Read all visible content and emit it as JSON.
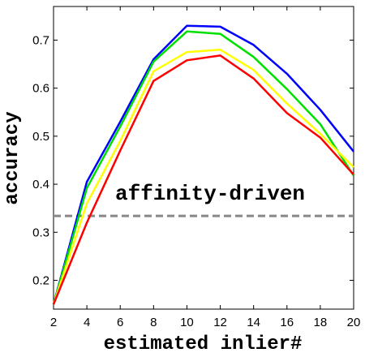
{
  "chart_data": {
    "type": "line",
    "title": "",
    "xlabel": "estimated inlier#",
    "ylabel": "accuracy",
    "xlim": [
      2,
      20
    ],
    "ylim": [
      0.14,
      0.77
    ],
    "xticks": [
      2,
      4,
      6,
      8,
      10,
      12,
      14,
      16,
      18,
      20
    ],
    "yticks": [
      0.2,
      0.3,
      0.4,
      0.5,
      0.6,
      0.7
    ],
    "x": [
      2,
      4,
      6,
      8,
      10,
      12,
      14,
      16,
      18,
      20
    ],
    "grid": false,
    "legend": "none",
    "series": [
      {
        "color": "#0000ff",
        "values": [
          0.15,
          0.405,
          0.53,
          0.66,
          0.73,
          0.728,
          0.69,
          0.63,
          0.555,
          0.468
        ]
      },
      {
        "color": "#00e000",
        "values": [
          0.15,
          0.392,
          0.52,
          0.655,
          0.718,
          0.713,
          0.665,
          0.598,
          0.525,
          0.418
        ]
      },
      {
        "color": "#ffff00",
        "values": [
          0.15,
          0.36,
          0.49,
          0.635,
          0.675,
          0.68,
          0.638,
          0.568,
          0.505,
          0.435
        ]
      },
      {
        "color": "#ff0000",
        "values": [
          0.15,
          0.32,
          0.47,
          0.615,
          0.658,
          0.668,
          0.62,
          0.548,
          0.497,
          0.42
        ]
      }
    ],
    "reference_line": {
      "value": 0.334,
      "color": "#888888",
      "style": "dashed"
    },
    "annotations": [
      {
        "text": "affinity-driven"
      }
    ]
  }
}
